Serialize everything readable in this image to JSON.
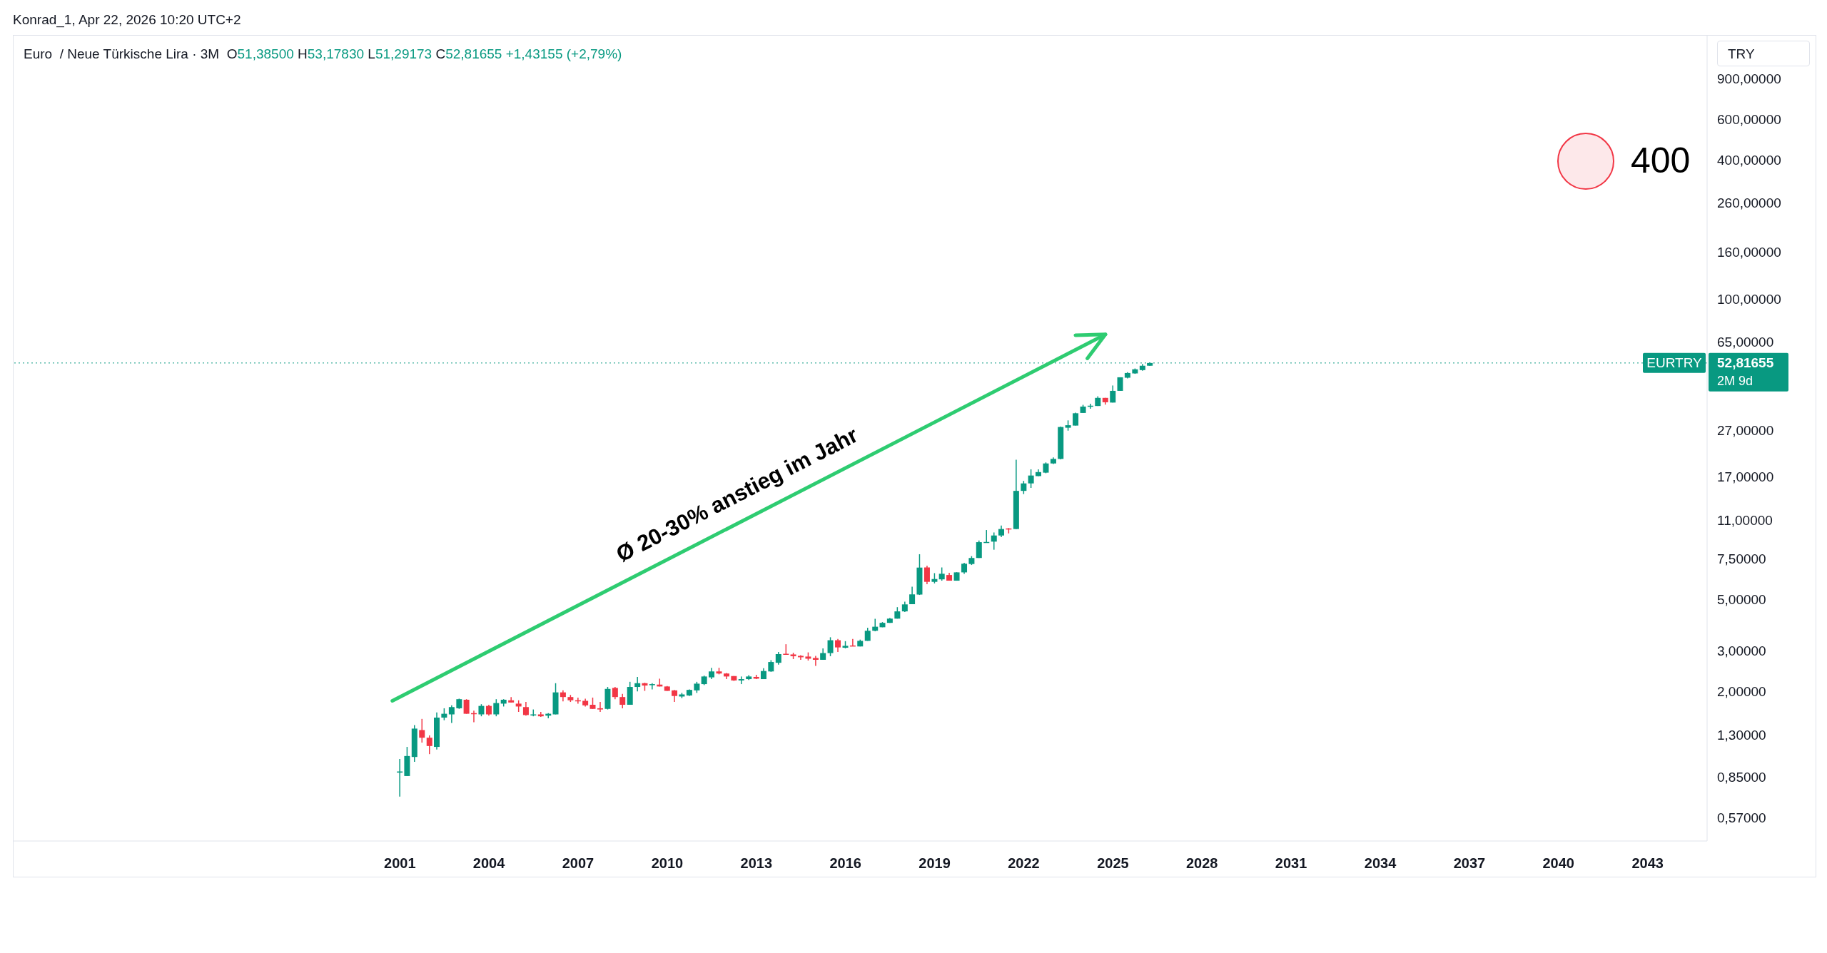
{
  "chart_data": {
    "type": "candlestick",
    "title": "Euro  / Neue Türkische Lira · 3M",
    "subtitle": "O51,38500 H53,17830 L51,29173 C52,81655 +1,43155 (+2,79%)",
    "ylabel": "TRY",
    "x": [
      "2001-01",
      "2001-04",
      "2001-07",
      "2001-10",
      "2002-01",
      "2002-04",
      "2002-07",
      "2002-10",
      "2003-01",
      "2003-04",
      "2003-07",
      "2003-10",
      "2004-01",
      "2004-04",
      "2004-07",
      "2004-10",
      "2005-01",
      "2005-04",
      "2005-07",
      "2005-10",
      "2006-01",
      "2006-04",
      "2006-07",
      "2006-10",
      "2007-01",
      "2007-04",
      "2007-07",
      "2007-10",
      "2008-01",
      "2008-04",
      "2008-07",
      "2008-10",
      "2009-01",
      "2009-04",
      "2009-07",
      "2009-10",
      "2010-01",
      "2010-04",
      "2010-07",
      "2010-10",
      "2011-01",
      "2011-04",
      "2011-07",
      "2011-10",
      "2012-01",
      "2012-04",
      "2012-07",
      "2012-10",
      "2013-01",
      "2013-04",
      "2013-07",
      "2013-10",
      "2014-01",
      "2014-04",
      "2014-07",
      "2014-10",
      "2015-01",
      "2015-04",
      "2015-07",
      "2015-10",
      "2016-01",
      "2016-04",
      "2016-07",
      "2016-10",
      "2017-01",
      "2017-04",
      "2017-07",
      "2017-10",
      "2018-01",
      "2018-04",
      "2018-07",
      "2018-10",
      "2019-01",
      "2019-04",
      "2019-07",
      "2019-10",
      "2020-01",
      "2020-04",
      "2020-07",
      "2020-10",
      "2021-01",
      "2021-04",
      "2021-07",
      "2021-10",
      "2022-01",
      "2022-04",
      "2022-07",
      "2022-10",
      "2023-01",
      "2023-04",
      "2023-07",
      "2023-10",
      "2024-01",
      "2024-04",
      "2024-07",
      "2024-10",
      "2025-01",
      "2025-04",
      "2025-07",
      "2025-10",
      "2026-01",
      "2026-04"
    ],
    "ohlc": [
      [
        0.89,
        1.02,
        0.7,
        0.9
      ],
      [
        0.86,
        1.15,
        0.86,
        1.05
      ],
      [
        1.04,
        1.43,
        0.99,
        1.38
      ],
      [
        1.36,
        1.52,
        1.2,
        1.26
      ],
      [
        1.26,
        1.29,
        1.07,
        1.16
      ],
      [
        1.15,
        1.62,
        1.12,
        1.54
      ],
      [
        1.54,
        1.69,
        1.5,
        1.6
      ],
      [
        1.59,
        1.74,
        1.46,
        1.71
      ],
      [
        1.69,
        1.86,
        1.68,
        1.85
      ],
      [
        1.84,
        1.85,
        1.6,
        1.6
      ],
      [
        1.61,
        1.65,
        1.47,
        1.6
      ],
      [
        1.59,
        1.76,
        1.56,
        1.73
      ],
      [
        1.73,
        1.75,
        1.57,
        1.59
      ],
      [
        1.59,
        1.85,
        1.56,
        1.78
      ],
      [
        1.77,
        1.85,
        1.72,
        1.84
      ],
      [
        1.83,
        1.89,
        1.79,
        1.79
      ],
      [
        1.77,
        1.83,
        1.63,
        1.72
      ],
      [
        1.71,
        1.8,
        1.57,
        1.58
      ],
      [
        1.58,
        1.67,
        1.56,
        1.59
      ],
      [
        1.59,
        1.63,
        1.55,
        1.56
      ],
      [
        1.57,
        1.61,
        1.53,
        1.6
      ],
      [
        1.59,
        2.17,
        1.59,
        1.98
      ],
      [
        1.98,
        2.02,
        1.81,
        1.89
      ],
      [
        1.89,
        1.93,
        1.8,
        1.83
      ],
      [
        1.83,
        1.88,
        1.77,
        1.82
      ],
      [
        1.82,
        1.86,
        1.72,
        1.74
      ],
      [
        1.75,
        1.88,
        1.68,
        1.68
      ],
      [
        1.69,
        1.8,
        1.63,
        1.67
      ],
      [
        1.68,
        2.09,
        1.67,
        2.05
      ],
      [
        2.07,
        2.09,
        1.85,
        1.89
      ],
      [
        1.89,
        1.95,
        1.69,
        1.75
      ],
      [
        1.75,
        2.2,
        1.75,
        2.09
      ],
      [
        2.09,
        2.31,
        2.0,
        2.17
      ],
      [
        2.17,
        2.18,
        2.01,
        2.12
      ],
      [
        2.14,
        2.17,
        2.04,
        2.15
      ],
      [
        2.14,
        2.27,
        2.1,
        2.1
      ],
      [
        2.1,
        2.11,
        2.01,
        2.01
      ],
      [
        2.02,
        2.03,
        1.8,
        1.91
      ],
      [
        1.9,
        1.97,
        1.87,
        1.94
      ],
      [
        1.92,
        2.04,
        1.91,
        2.03
      ],
      [
        2.02,
        2.2,
        1.97,
        2.16
      ],
      [
        2.15,
        2.34,
        2.13,
        2.32
      ],
      [
        2.3,
        2.53,
        2.26,
        2.44
      ],
      [
        2.44,
        2.53,
        2.37,
        2.39
      ],
      [
        2.39,
        2.4,
        2.26,
        2.32
      ],
      [
        2.33,
        2.33,
        2.22,
        2.23
      ],
      [
        2.23,
        2.32,
        2.15,
        2.26
      ],
      [
        2.26,
        2.35,
        2.24,
        2.32
      ],
      [
        2.31,
        2.36,
        2.26,
        2.27
      ],
      [
        2.26,
        2.52,
        2.26,
        2.45
      ],
      [
        2.44,
        2.73,
        2.43,
        2.68
      ],
      [
        2.66,
        2.96,
        2.61,
        2.9
      ],
      [
        2.91,
        3.2,
        2.89,
        2.89
      ],
      [
        2.89,
        2.94,
        2.76,
        2.84
      ],
      [
        2.85,
        2.87,
        2.74,
        2.81
      ],
      [
        2.83,
        2.95,
        2.72,
        2.77
      ],
      [
        2.79,
        2.85,
        2.58,
        2.74
      ],
      [
        2.74,
        3.07,
        2.74,
        2.93
      ],
      [
        2.93,
        3.43,
        2.84,
        3.33
      ],
      [
        3.33,
        3.37,
        2.96,
        3.1
      ],
      [
        3.09,
        3.3,
        3.07,
        3.15
      ],
      [
        3.16,
        3.37,
        3.14,
        3.15
      ],
      [
        3.13,
        3.35,
        3.13,
        3.31
      ],
      [
        3.31,
        3.77,
        3.31,
        3.66
      ],
      [
        3.66,
        4.12,
        3.64,
        3.81
      ],
      [
        3.79,
        3.99,
        3.79,
        3.96
      ],
      [
        3.96,
        4.16,
        3.96,
        4.13
      ],
      [
        4.13,
        4.63,
        4.13,
        4.44
      ],
      [
        4.44,
        4.89,
        4.41,
        4.76
      ],
      [
        4.77,
        5.68,
        4.77,
        5.26
      ],
      [
        5.25,
        7.85,
        5.23,
        6.87
      ],
      [
        6.88,
        7.0,
        5.82,
        5.96
      ],
      [
        5.96,
        6.5,
        5.87,
        6.13
      ],
      [
        6.11,
        6.88,
        6.03,
        6.46
      ],
      [
        6.38,
        6.52,
        6.03,
        6.03
      ],
      [
        6.03,
        6.56,
        6.03,
        6.55
      ],
      [
        6.55,
        7.2,
        6.45,
        7.14
      ],
      [
        7.12,
        7.7,
        7.05,
        7.56
      ],
      [
        7.56,
        9.0,
        7.56,
        8.85
      ],
      [
        8.85,
        9.99,
        8.82,
        8.87
      ],
      [
        8.9,
        9.75,
        8.21,
        9.46
      ],
      [
        9.46,
        10.45,
        9.3,
        10.09
      ],
      [
        10.15,
        10.19,
        9.66,
        10.14
      ],
      [
        10.09,
        20.15,
        10.09,
        14.76
      ],
      [
        14.76,
        16.3,
        14.3,
        15.9
      ],
      [
        15.9,
        18.3,
        15.2,
        17.2
      ],
      [
        17.1,
        18.3,
        17.1,
        17.8
      ],
      [
        17.7,
        19.6,
        17.6,
        19.4
      ],
      [
        19.4,
        20.6,
        19.3,
        20.3
      ],
      [
        20.3,
        28.0,
        20.2,
        27.9
      ],
      [
        27.7,
        29.8,
        26.9,
        28.4
      ],
      [
        28.3,
        32.2,
        28.3,
        32.0
      ],
      [
        32.1,
        34.8,
        32.1,
        34.2
      ],
      [
        34.3,
        35.2,
        33.5,
        34.5
      ],
      [
        34.4,
        37.9,
        34.4,
        37.3
      ],
      [
        37.3,
        37.3,
        34.9,
        35.7
      ],
      [
        35.6,
        42.2,
        35.6,
        40.0
      ],
      [
        40.0,
        45.8,
        40.0,
        45.8
      ],
      [
        45.6,
        48.2,
        45.3,
        47.8
      ],
      [
        47.6,
        50.0,
        47.4,
        49.6
      ],
      [
        49.2,
        52.3,
        48.9,
        51.385
      ],
      [
        51.385,
        53.1783,
        51.29173,
        52.81655
      ]
    ],
    "colors": [
      "#089981",
      "#089981",
      "#089981",
      "#f23645",
      "#f23645",
      "#089981",
      "#089981",
      "#089981",
      "#089981",
      "#f23645",
      "#f23645",
      "#089981",
      "#f23645",
      "#089981",
      "#089981",
      "#f23645",
      "#f23645",
      "#f23645",
      "#089981",
      "#f23645",
      "#089981",
      "#089981",
      "#f23645",
      "#f23645",
      "#f23645",
      "#f23645",
      "#f23645",
      "#f23645",
      "#089981",
      "#f23645",
      "#f23645",
      "#089981",
      "#089981",
      "#f23645",
      "#089981",
      "#f23645",
      "#f23645",
      "#f23645",
      "#089981",
      "#089981",
      "#089981",
      "#089981",
      "#089981",
      "#f23645",
      "#f23645",
      "#f23645",
      "#089981",
      "#089981",
      "#f23645",
      "#089981",
      "#089981",
      "#089981",
      "#f23645",
      "#f23645",
      "#f23645",
      "#f23645",
      "#f23645",
      "#089981",
      "#089981",
      "#f23645",
      "#089981",
      "#f23645",
      "#089981",
      "#089981",
      "#089981",
      "#089981",
      "#089981",
      "#089981",
      "#089981",
      "#089981",
      "#089981",
      "#f23645",
      "#089981",
      "#089981",
      "#f23645",
      "#089981",
      "#089981",
      "#089981",
      "#089981",
      "#089981",
      "#089981",
      "#089981",
      "#f23645",
      "#089981",
      "#089981",
      "#089981",
      "#089981",
      "#089981",
      "#089981",
      "#089981",
      "#089981",
      "#089981",
      "#089981",
      "#089981",
      "#089981",
      "#f23645",
      "#089981",
      "#089981",
      "#089981",
      "#089981",
      "#089981",
      "#089981"
    ],
    "series": [
      {
        "type": "line",
        "x": [
          "2000-10",
          "2024-10"
        ],
        "values": [
          1.82,
          70.2
        ],
        "color": "#2ecc71"
      }
    ],
    "xlim": [
      "1988-01",
      "2045-01"
    ],
    "xticks": [
      "2001",
      "2004",
      "2007",
      "2010",
      "2013",
      "2016",
      "2019",
      "2022",
      "2025",
      "2028",
      "2031",
      "2034",
      "2037",
      "2040",
      "2043"
    ],
    "log": true,
    "ylim": [
      0.45,
      1380
    ],
    "yticks": [
      {
        "value": 0.57,
        "label": "0,57000"
      },
      {
        "value": 0.85,
        "label": "0,85000"
      },
      {
        "value": 1.3,
        "label": "1,30000"
      },
      {
        "value": 2,
        "label": "2,00000"
      },
      {
        "value": 3,
        "label": "3,00000"
      },
      {
        "value": 5,
        "label": "5,00000"
      },
      {
        "value": 7.5,
        "label": "7,50000"
      },
      {
        "value": 11,
        "label": "11,00000"
      },
      {
        "value": 17,
        "label": "17,00000"
      },
      {
        "value": 27,
        "label": "27,00000"
      },
      {
        "value": 65,
        "label": "65,00000"
      },
      {
        "value": 100,
        "label": "100,00000"
      },
      {
        "value": 160,
        "label": "160,00000"
      },
      {
        "value": 260,
        "label": "260,00000"
      },
      {
        "value": 400,
        "label": "400,00000"
      },
      {
        "value": 600,
        "label": "600,00000"
      },
      {
        "value": 900,
        "label": "900,00000"
      }
    ],
    "ref_lines": [
      {
        "axis": "y",
        "value": 52.81655,
        "label": "EURTRY",
        "color": "#089981",
        "line_style": "dotted"
      }
    ],
    "annotations": [
      "Konrad_1, Apr 22, 2026 10:20 UTC+2",
      "Ø 20-30% anstieg im Jahr",
      "400",
      "52,81655",
      "2M 9d"
    ]
  }
}
